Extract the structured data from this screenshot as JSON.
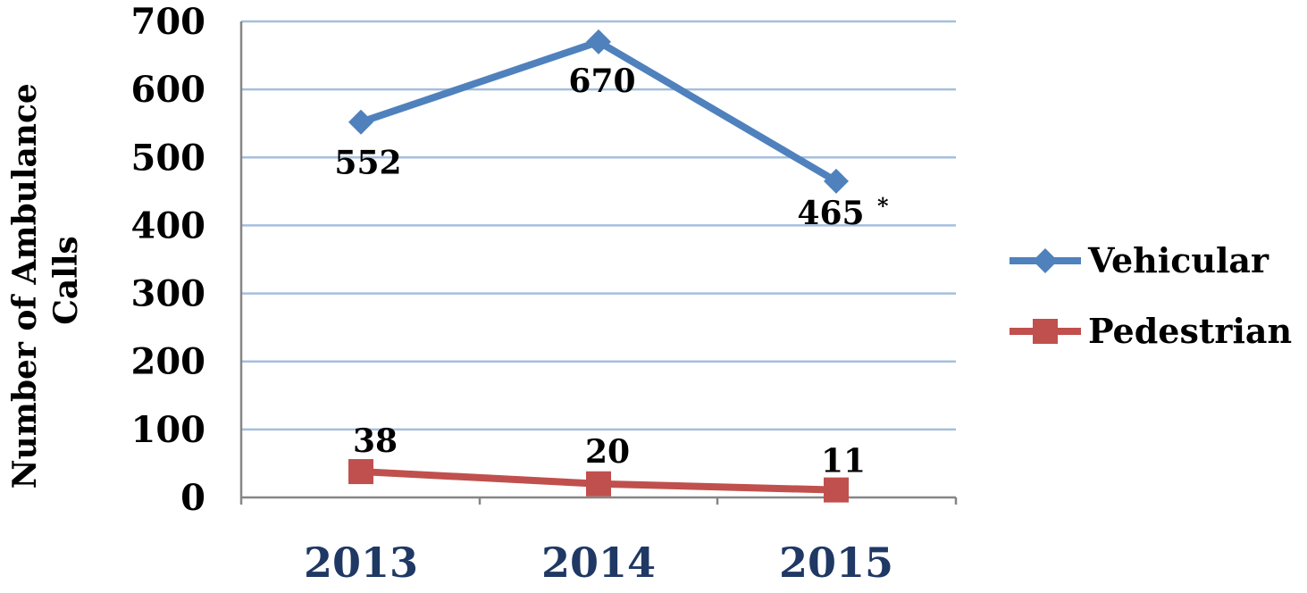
{
  "chart_data": {
    "type": "line",
    "categories": [
      "2013",
      "2014",
      "2015"
    ],
    "series": [
      {
        "name": "Vehicular",
        "values": [
          552,
          670,
          465
        ],
        "data_labels": [
          "552",
          "670",
          "465"
        ],
        "color": "#4f81bd",
        "marker": "diamond"
      },
      {
        "name": "Pedestrian",
        "values": [
          38,
          20,
          11
        ],
        "data_labels": [
          "38",
          "20",
          "11"
        ],
        "color": "#c0504d",
        "marker": "square"
      }
    ],
    "annotations": [
      {
        "text": "*",
        "series": "Vehicular",
        "category": "2015"
      }
    ],
    "ylabel": "Number of Ambulance Calls",
    "ylabel_lines": [
      "Number of Ambulance",
      "Calls"
    ],
    "xlabel": "",
    "ylim": [
      0,
      700
    ],
    "yticks": [
      "0",
      "100",
      "200",
      "300",
      "400",
      "500",
      "600",
      "700"
    ],
    "grid": true,
    "grid_color": "#a5bfdd",
    "axis_color": "#868686",
    "x_tick_color": "#1f3864",
    "legend_position": "right"
  }
}
